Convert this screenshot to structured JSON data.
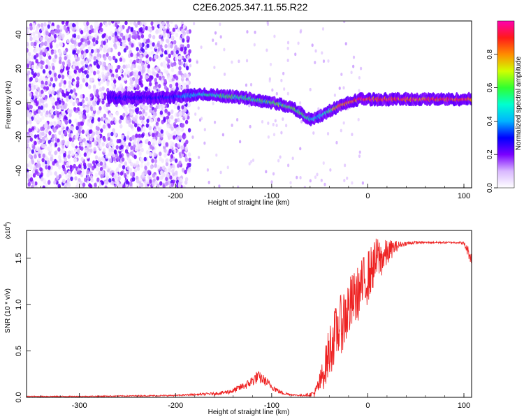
{
  "figure_title": "C2E6.2025.347.11.55.R22",
  "chart_data": [
    {
      "type": "heatmap",
      "title": "",
      "xlabel": "Height of straight line (km)",
      "ylabel": "Frequency (Hz)",
      "xlim": [
        -355,
        108
      ],
      "ylim": [
        -50,
        48
      ],
      "xticks": [
        -300,
        -200,
        -100,
        0,
        100
      ],
      "yticks": [
        -40,
        -20,
        0,
        20,
        40
      ],
      "colorbar": {
        "label": "Normalized spectral amplitude",
        "range": [
          0,
          1
        ],
        "ticks": [
          "0.0",
          "0.2",
          "0.4",
          "0.6",
          "0.8"
        ],
        "colors": [
          "#ffffff",
          "#d9b8ff",
          "#7a00ff",
          "#0000ff",
          "#00b4ff",
          "#00ffd0",
          "#30ff30",
          "#d0ff00",
          "#ff8c00",
          "#ff1a1a",
          "#ff00b0"
        ]
      },
      "ridge": {
        "x": [
          -270,
          -250,
          -230,
          -210,
          -190,
          -170,
          -150,
          -130,
          -110,
          -90,
          -75,
          -65,
          -58,
          -50,
          -40,
          -30,
          -20,
          -10,
          0,
          10,
          20,
          40,
          60,
          80,
          100,
          108
        ],
        "freq": [
          3,
          3,
          3,
          3,
          4,
          5,
          4,
          3,
          1,
          -1,
          -4,
          -8,
          -10,
          -8,
          -5,
          -2,
          0,
          2,
          2,
          2,
          2,
          2,
          2,
          2,
          2,
          2
        ],
        "amplitude": [
          0.25,
          0.3,
          0.28,
          0.3,
          0.4,
          0.5,
          0.55,
          0.55,
          0.55,
          0.6,
          0.6,
          0.55,
          0.5,
          0.45,
          0.6,
          0.75,
          0.85,
          0.9,
          0.9,
          0.9,
          0.9,
          0.9,
          0.9,
          0.9,
          0.88,
          0.85
        ]
      },
      "noise_region": {
        "x_range": [
          -355,
          -185
        ],
        "freq_range": [
          -50,
          48
        ]
      }
    },
    {
      "type": "line",
      "title": "",
      "xlabel": "Height of straight line (km)",
      "ylabel": "SNR (10 * v/v)",
      "multiplier_label": "(x10",
      "multiplier_exponent": "4",
      "multiplier_close": ")",
      "xlim": [
        -355,
        108
      ],
      "ylim": [
        0,
        1.8
      ],
      "xticks": [
        -300,
        -200,
        -100,
        0,
        100
      ],
      "yticks": [
        "0.0",
        "0.5",
        "1.0",
        "1.5"
      ],
      "series": [
        {
          "name": "SNR",
          "color": "#ee2222",
          "x": [
            -355,
            -300,
            -250,
            -200,
            -180,
            -160,
            -150,
            -140,
            -130,
            -125,
            -120,
            -115,
            -110,
            -105,
            -100,
            -95,
            -90,
            -85,
            -80,
            -70,
            -60,
            -55,
            -50,
            -45,
            -40,
            -35,
            -30,
            -25,
            -20,
            -15,
            -10,
            -5,
            0,
            5,
            10,
            15,
            20,
            25,
            30,
            35,
            40,
            50,
            60,
            70,
            80,
            90,
            95,
            100,
            104,
            108
          ],
          "y": [
            0.01,
            0.01,
            0.015,
            0.02,
            0.03,
            0.04,
            0.05,
            0.07,
            0.12,
            0.14,
            0.18,
            0.22,
            0.2,
            0.16,
            0.12,
            0.08,
            0.05,
            0.04,
            0.03,
            0.02,
            0.03,
            0.05,
            0.15,
            0.3,
            0.5,
            0.65,
            0.75,
            0.85,
            0.95,
            1.05,
            1.12,
            1.22,
            1.3,
            1.4,
            1.5,
            1.5,
            1.55,
            1.6,
            1.63,
            1.65,
            1.66,
            1.67,
            1.67,
            1.67,
            1.67,
            1.67,
            1.67,
            1.66,
            1.58,
            1.5
          ],
          "noise_amplitude": [
            0.005,
            0.005,
            0.006,
            0.008,
            0.01,
            0.015,
            0.02,
            0.03,
            0.04,
            0.05,
            0.06,
            0.07,
            0.06,
            0.05,
            0.04,
            0.03,
            0.02,
            0.015,
            0.01,
            0.01,
            0.02,
            0.05,
            0.12,
            0.2,
            0.3,
            0.3,
            0.3,
            0.35,
            0.35,
            0.3,
            0.3,
            0.3,
            0.3,
            0.25,
            0.25,
            0.2,
            0.15,
            0.1,
            0.06,
            0.03,
            0.02,
            0.015,
            0.01,
            0.01,
            0.01,
            0.01,
            0.01,
            0.02,
            0.06,
            0.08
          ]
        }
      ]
    }
  ]
}
